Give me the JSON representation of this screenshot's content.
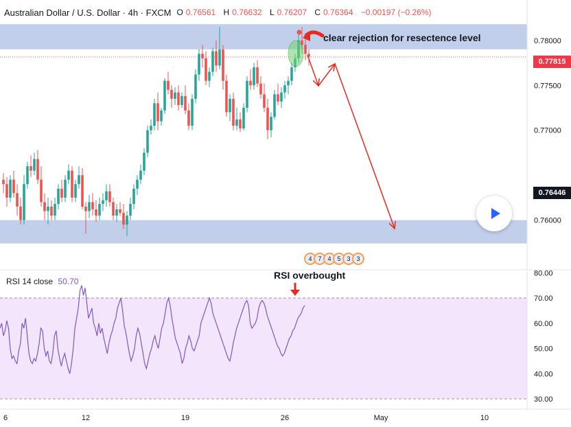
{
  "header": {
    "title": "Australian Dollar / U.S. Dollar · 4h · FXCM",
    "ohlc": [
      {
        "key": "O",
        "value": "0.76561"
      },
      {
        "key": "H",
        "value": "0.76632"
      },
      {
        "key": "L",
        "value": "0.76207"
      },
      {
        "key": "C",
        "value": "0.76364"
      },
      {
        "key": "",
        "value": "−0.00197 (−0.26%)"
      }
    ]
  },
  "price_tags": {
    "current": {
      "label": "0.77815",
      "color": "#f23645"
    },
    "last": {
      "label": "0.76446",
      "color": "#131722"
    }
  },
  "annotations": {
    "rejection": "clear rejection for resectence level",
    "rsi": "RSI overbought"
  },
  "rsi_legend": {
    "label": "RSI 14 close",
    "value": "50.70"
  },
  "events": [
    "4",
    "7",
    "4",
    "5",
    "3",
    "3"
  ],
  "colors": {
    "up": "#26a69a",
    "down": "#ef5350",
    "zone": "#b7c7e6",
    "rsi_line": "#7e57c2",
    "rsi_band": "#f3e5fb",
    "arrow": "#e8291c",
    "highlight": "#6fd36f"
  },
  "chart_data": [
    {
      "type": "candlestick",
      "title": "Australian Dollar / U.S. Dollar · 4h · FXCM",
      "x_ticks": [
        "6",
        "12",
        "19",
        "26",
        "May",
        "10"
      ],
      "y_ticks": [
        "0.78000",
        "0.77500",
        "0.77000",
        "0.76000"
      ],
      "ylim": [
        0.7547,
        0.7822
      ],
      "zones": [
        {
          "from": 0.779,
          "to": 0.7818
        },
        {
          "from": 0.7574,
          "to": 0.76
        }
      ],
      "horizontal_line": 0.77815,
      "candles": [
        [
          0.7645,
          0.7652,
          0.763,
          0.764
        ],
        [
          0.764,
          0.7648,
          0.7615,
          0.7625
        ],
        [
          0.7625,
          0.765,
          0.762,
          0.7645
        ],
        [
          0.7645,
          0.7655,
          0.7625,
          0.763
        ],
        [
          0.763,
          0.764,
          0.7605,
          0.7615
        ],
        [
          0.7615,
          0.7625,
          0.7595,
          0.76
        ],
        [
          0.76,
          0.765,
          0.7595,
          0.764
        ],
        [
          0.764,
          0.7665,
          0.7635,
          0.766
        ],
        [
          0.766,
          0.7672,
          0.7648,
          0.7655
        ],
        [
          0.7655,
          0.7675,
          0.765,
          0.7668
        ],
        [
          0.7668,
          0.7678,
          0.764,
          0.7645
        ],
        [
          0.7645,
          0.766,
          0.7615,
          0.762
        ],
        [
          0.762,
          0.763,
          0.76,
          0.761
        ],
        [
          0.761,
          0.7625,
          0.7595,
          0.7615
        ],
        [
          0.7615,
          0.7622,
          0.76,
          0.7605
        ],
        [
          0.7605,
          0.7625,
          0.76,
          0.7618
        ],
        [
          0.7618,
          0.764,
          0.7612,
          0.7635
        ],
        [
          0.7635,
          0.7645,
          0.762,
          0.7625
        ],
        [
          0.7625,
          0.765,
          0.762,
          0.7645
        ],
        [
          0.7645,
          0.7662,
          0.764,
          0.7655
        ],
        [
          0.7655,
          0.766,
          0.762,
          0.7625
        ],
        [
          0.7625,
          0.7645,
          0.762,
          0.764
        ],
        [
          0.764,
          0.766,
          0.7635,
          0.765
        ],
        [
          0.765,
          0.7658,
          0.7612,
          0.7615
        ],
        [
          0.7615,
          0.762,
          0.7585,
          0.761
        ],
        [
          0.761,
          0.7628,
          0.7602,
          0.762
        ],
        [
          0.762,
          0.763,
          0.7605,
          0.7612
        ],
        [
          0.7612,
          0.7622,
          0.7598,
          0.7605
        ],
        [
          0.7605,
          0.7625,
          0.76,
          0.7618
        ],
        [
          0.7618,
          0.763,
          0.761,
          0.7622
        ],
        [
          0.7622,
          0.764,
          0.7615,
          0.7632
        ],
        [
          0.7632,
          0.764,
          0.7615,
          0.762
        ],
        [
          0.762,
          0.7625,
          0.76,
          0.7605
        ],
        [
          0.7605,
          0.7618,
          0.7598,
          0.7612
        ],
        [
          0.7612,
          0.762,
          0.7605,
          0.7608
        ],
        [
          0.7608,
          0.7618,
          0.759,
          0.7595
        ],
        [
          0.7595,
          0.761,
          0.7582,
          0.7605
        ],
        [
          0.7605,
          0.7625,
          0.76,
          0.7618
        ],
        [
          0.7618,
          0.764,
          0.7612,
          0.7635
        ],
        [
          0.7635,
          0.765,
          0.7628,
          0.7645
        ],
        [
          0.7645,
          0.7662,
          0.764,
          0.7655
        ],
        [
          0.7655,
          0.768,
          0.765,
          0.7675
        ],
        [
          0.7675,
          0.7705,
          0.767,
          0.77
        ],
        [
          0.77,
          0.7712,
          0.7695,
          0.7705
        ],
        [
          0.7705,
          0.7735,
          0.77,
          0.773
        ],
        [
          0.773,
          0.7742,
          0.77,
          0.771
        ],
        [
          0.771,
          0.7725,
          0.7705,
          0.7722
        ],
        [
          0.7722,
          0.7758,
          0.7718,
          0.7755
        ],
        [
          0.7755,
          0.7765,
          0.774,
          0.7745
        ],
        [
          0.7745,
          0.775,
          0.7725,
          0.7735
        ],
        [
          0.7735,
          0.7748,
          0.7728,
          0.7742
        ],
        [
          0.7742,
          0.775,
          0.7722,
          0.7728
        ],
        [
          0.7728,
          0.7742,
          0.7725,
          0.7738
        ],
        [
          0.7738,
          0.775,
          0.7718,
          0.7722
        ],
        [
          0.7722,
          0.773,
          0.77,
          0.7705
        ],
        [
          0.7705,
          0.774,
          0.77,
          0.7735
        ],
        [
          0.7735,
          0.7768,
          0.773,
          0.7762
        ],
        [
          0.7762,
          0.779,
          0.7755,
          0.7785
        ],
        [
          0.7785,
          0.7795,
          0.777,
          0.778
        ],
        [
          0.778,
          0.7788,
          0.775,
          0.7755
        ],
        [
          0.7755,
          0.777,
          0.7748,
          0.7765
        ],
        [
          0.7765,
          0.7792,
          0.776,
          0.7788
        ],
        [
          0.7788,
          0.78,
          0.7765,
          0.7772
        ],
        [
          0.7772,
          0.7815,
          0.7768,
          0.779
        ],
        [
          0.779,
          0.7795,
          0.7745,
          0.7755
        ],
        [
          0.7755,
          0.7762,
          0.7715,
          0.772
        ],
        [
          0.772,
          0.774,
          0.771,
          0.7735
        ],
        [
          0.7735,
          0.7742,
          0.77,
          0.7705
        ],
        [
          0.7705,
          0.7725,
          0.77,
          0.7712
        ],
        [
          0.7712,
          0.772,
          0.7698,
          0.7702
        ],
        [
          0.7702,
          0.773,
          0.77,
          0.7725
        ],
        [
          0.7725,
          0.776,
          0.772,
          0.7755
        ],
        [
          0.7755,
          0.7768,
          0.7745,
          0.775
        ],
        [
          0.775,
          0.7775,
          0.7745,
          0.777
        ],
        [
          0.777,
          0.7778,
          0.7748,
          0.7752
        ],
        [
          0.7752,
          0.776,
          0.7735,
          0.774
        ],
        [
          0.774,
          0.7752,
          0.772,
          0.7725
        ],
        [
          0.7725,
          0.7735,
          0.769,
          0.77
        ],
        [
          0.77,
          0.772,
          0.7692,
          0.7715
        ],
        [
          0.7715,
          0.7745,
          0.7712,
          0.774
        ],
        [
          0.774,
          0.7752,
          0.7728,
          0.7732
        ],
        [
          0.7732,
          0.7748,
          0.7725,
          0.7742
        ],
        [
          0.7742,
          0.7755,
          0.7735,
          0.775
        ],
        [
          0.775,
          0.776,
          0.774,
          0.7755
        ],
        [
          0.7755,
          0.7775,
          0.775,
          0.777
        ],
        [
          0.777,
          0.7785,
          0.7765,
          0.778
        ],
        [
          0.778,
          0.7812,
          0.7775,
          0.78
        ],
        [
          0.78,
          0.7815,
          0.7785,
          0.7795
        ],
        [
          0.7795,
          0.7808,
          0.7778,
          0.7785
        ],
        [
          0.7785,
          0.779,
          0.7772,
          0.7782
        ]
      ]
    },
    {
      "type": "line",
      "title": "RSI 14 close",
      "y_ticks": [
        "80.00",
        "70.00",
        "60.00",
        "50.00",
        "40.00",
        "30.00"
      ],
      "ylim": [
        27,
        82
      ],
      "bands": [
        70,
        30
      ],
      "series": [
        {
          "values": [
            58,
            60,
            55,
            57,
            61,
            58,
            50,
            46,
            47,
            45,
            44,
            49,
            52,
            60,
            58,
            62,
            55,
            48,
            45,
            44,
            46,
            45,
            48,
            52,
            58,
            57,
            50,
            47,
            49,
            45,
            44,
            48,
            55,
            57,
            50,
            46,
            43,
            46,
            48,
            45,
            42,
            40,
            44,
            50,
            58,
            62,
            66,
            73,
            75,
            71,
            74,
            68,
            62,
            64,
            66,
            60,
            58,
            55,
            60,
            56,
            58,
            54,
            51,
            48,
            52,
            55,
            57,
            60,
            62,
            66,
            68,
            70,
            65,
            59,
            56,
            52,
            48,
            45,
            47,
            50,
            55,
            58,
            56,
            52,
            48,
            44,
            42,
            45,
            48,
            50,
            53,
            55,
            52,
            50,
            54,
            58,
            60,
            64,
            68,
            70,
            67,
            62,
            58,
            54,
            52,
            50,
            48,
            44,
            46,
            50,
            52,
            55,
            53,
            50,
            49,
            51,
            53,
            55,
            60,
            62,
            64,
            66,
            68,
            70,
            68,
            64,
            62,
            60,
            58,
            56,
            54,
            52,
            50,
            48,
            46,
            45,
            48,
            52,
            55,
            58,
            60,
            62,
            64,
            66,
            68,
            69,
            67,
            60,
            58,
            59,
            60,
            62,
            66,
            68,
            69,
            68,
            66,
            63,
            61,
            59,
            57,
            55,
            53,
            51,
            50,
            48,
            47,
            48,
            50,
            52,
            54,
            55,
            57,
            58,
            60,
            62,
            63,
            64,
            66,
            67
          ]
        }
      ]
    }
  ]
}
